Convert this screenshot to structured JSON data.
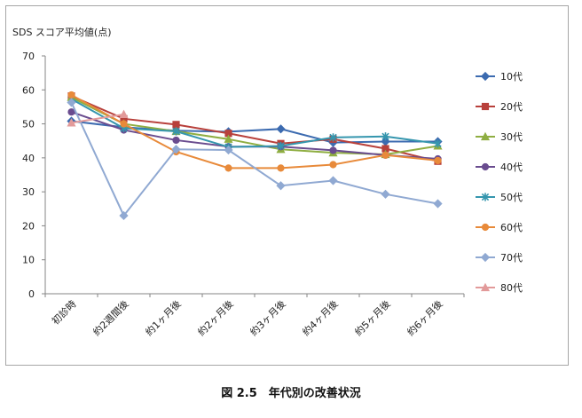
{
  "chart_data": {
    "type": "line",
    "title": "",
    "ylabel": "SDS スコア平均値(点)",
    "xlabel": "",
    "ylim": [
      0,
      70
    ],
    "yticks": [
      0,
      10,
      20,
      30,
      40,
      50,
      60,
      70
    ],
    "grid": false,
    "legend": "right",
    "categories": [
      "初診時",
      "約2週間後",
      "約1ヶ月後",
      "約2ヶ月後",
      "約3ヶ月後",
      "約4ヶ月後",
      "約5ヶ月後",
      "約6ヶ月後"
    ],
    "series": [
      {
        "name": "10代",
        "color": "#3c6bb0",
        "marker": "diamond",
        "values": [
          50.8,
          49,
          48,
          47.7,
          48.5,
          44.5,
          44.8,
          44.8
        ]
      },
      {
        "name": "20代",
        "color": "#b8403b",
        "marker": "square",
        "values": [
          58.2,
          51.5,
          49.8,
          47.2,
          44.2,
          45.5,
          42.7,
          39
        ]
      },
      {
        "name": "30代",
        "color": "#8fae42",
        "marker": "triangle",
        "values": [
          57.8,
          50,
          47.8,
          45.5,
          42.5,
          41.5,
          41,
          43.5
        ]
      },
      {
        "name": "40代",
        "color": "#6a4c8f",
        "marker": "circle",
        "values": [
          53.5,
          48.2,
          45.2,
          43.3,
          43.3,
          42.2,
          40.8,
          39.7
        ]
      },
      {
        "name": "50代",
        "color": "#3596ae",
        "marker": "star",
        "values": [
          57.3,
          48.7,
          47.8,
          43.2,
          43.5,
          46,
          46.3,
          44.2
        ]
      },
      {
        "name": "60代",
        "color": "#e88a3a",
        "marker": "circle",
        "values": [
          58.5,
          50,
          41.8,
          37,
          37,
          38,
          40.8,
          39.2
        ]
      },
      {
        "name": "70代",
        "color": "#90a9d2",
        "marker": "diamond",
        "values": [
          56.3,
          23,
          42.5,
          42.3,
          31.8,
          33.3,
          29.3,
          26.5
        ]
      },
      {
        "name": "80代",
        "color": "#e29a9a",
        "marker": "triangle",
        "values": [
          50.3,
          52.8,
          null,
          null,
          null,
          null,
          null,
          null
        ]
      }
    ],
    "caption": "図 2.5　年代別の改善状況"
  }
}
